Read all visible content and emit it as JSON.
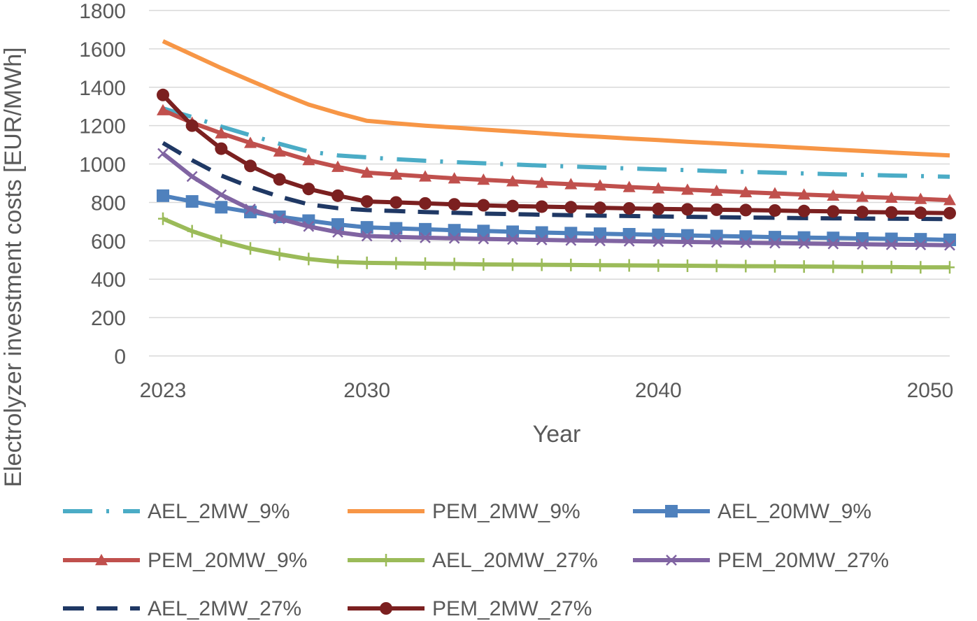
{
  "chart_data": {
    "type": "line",
    "title": "",
    "xlabel": "Year",
    "ylabel": "Electrolyzer investment costs [EUR/MWh]",
    "xlim": [
      2023,
      2050
    ],
    "ylim": [
      0,
      1800
    ],
    "x_ticks": [
      2023,
      2030,
      2040,
      2050
    ],
    "y_ticks": [
      0,
      200,
      400,
      600,
      800,
      1000,
      1200,
      1400,
      1600,
      1800
    ],
    "grid": "horizontal",
    "legend_position": "bottom",
    "x": [
      2023,
      2024,
      2025,
      2026,
      2027,
      2028,
      2029,
      2030,
      2031,
      2032,
      2033,
      2034,
      2035,
      2036,
      2037,
      2038,
      2039,
      2040,
      2041,
      2042,
      2043,
      2044,
      2045,
      2046,
      2047,
      2048,
      2049,
      2050
    ],
    "series": [
      {
        "name": "AEL_2MW_9%",
        "color": "#4bacc6",
        "style": "dashdot",
        "marker": "none",
        "values": [
          1290,
          1245,
          1195,
          1150,
          1105,
          1065,
          1045,
          1035,
          1025,
          1017,
          1010,
          1004,
          998,
          992,
          987,
          982,
          977,
          972,
          968,
          963,
          959,
          955,
          951,
          947,
          944,
          940,
          937,
          934
        ]
      },
      {
        "name": "PEM_2MW_9%",
        "color": "#f79646",
        "style": "solid",
        "marker": "none",
        "values": [
          1640,
          1570,
          1500,
          1435,
          1370,
          1310,
          1265,
          1225,
          1212,
          1200,
          1190,
          1180,
          1170,
          1160,
          1150,
          1142,
          1133,
          1125,
          1116,
          1108,
          1100,
          1092,
          1084,
          1076,
          1068,
          1060,
          1052,
          1045
        ]
      },
      {
        "name": "AEL_20MW_9%",
        "color": "#4f81bd",
        "style": "solid",
        "marker": "square",
        "values": [
          835,
          805,
          775,
          750,
          725,
          705,
          685,
          670,
          665,
          660,
          655,
          651,
          647,
          643,
          640,
          637,
          634,
          631,
          628,
          625,
          622,
          619,
          617,
          615,
          612,
          610,
          608,
          605
        ]
      },
      {
        "name": "PEM_20MW_9%",
        "color": "#c0504d",
        "style": "solid",
        "marker": "triangle",
        "values": [
          1280,
          1215,
          1160,
          1110,
          1065,
          1020,
          985,
          955,
          945,
          935,
          925,
          918,
          910,
          902,
          895,
          888,
          880,
          873,
          866,
          860,
          853,
          847,
          841,
          835,
          829,
          824,
          818,
          812
        ]
      },
      {
        "name": "AEL_20MW_27%",
        "color": "#9bbb59",
        "style": "solid",
        "marker": "plus",
        "values": [
          715,
          650,
          600,
          560,
          530,
          505,
          490,
          485,
          483,
          481,
          479,
          477,
          476,
          475,
          474,
          473,
          472,
          471,
          470,
          469,
          468,
          467,
          466,
          465,
          464,
          463,
          462,
          462
        ]
      },
      {
        "name": "PEM_20MW_27%",
        "color": "#8064a2",
        "style": "solid",
        "marker": "x",
        "values": [
          1055,
          935,
          840,
          765,
          715,
          675,
          645,
          625,
          620,
          616,
          613,
          610,
          607,
          605,
          602,
          600,
          598,
          596,
          594,
          592,
          590,
          588,
          586,
          584,
          582,
          580,
          579,
          577
        ]
      },
      {
        "name": "AEL_2MW_27%",
        "color": "#1f3864",
        "style": "dash",
        "marker": "none",
        "values": [
          1110,
          1020,
          940,
          880,
          830,
          790,
          770,
          760,
          755,
          750,
          746,
          742,
          739,
          736,
          733,
          731,
          729,
          727,
          725,
          723,
          721,
          720,
          718,
          717,
          716,
          715,
          714,
          713
        ]
      },
      {
        "name": "PEM_2MW_27%",
        "color": "#7b2020",
        "style": "solid",
        "marker": "circle",
        "values": [
          1360,
          1200,
          1080,
          990,
          920,
          870,
          835,
          805,
          800,
          795,
          790,
          785,
          781,
          778,
          775,
          772,
          769,
          766,
          764,
          762,
          760,
          758,
          755,
          753,
          750,
          748,
          746,
          744
        ]
      }
    ]
  }
}
